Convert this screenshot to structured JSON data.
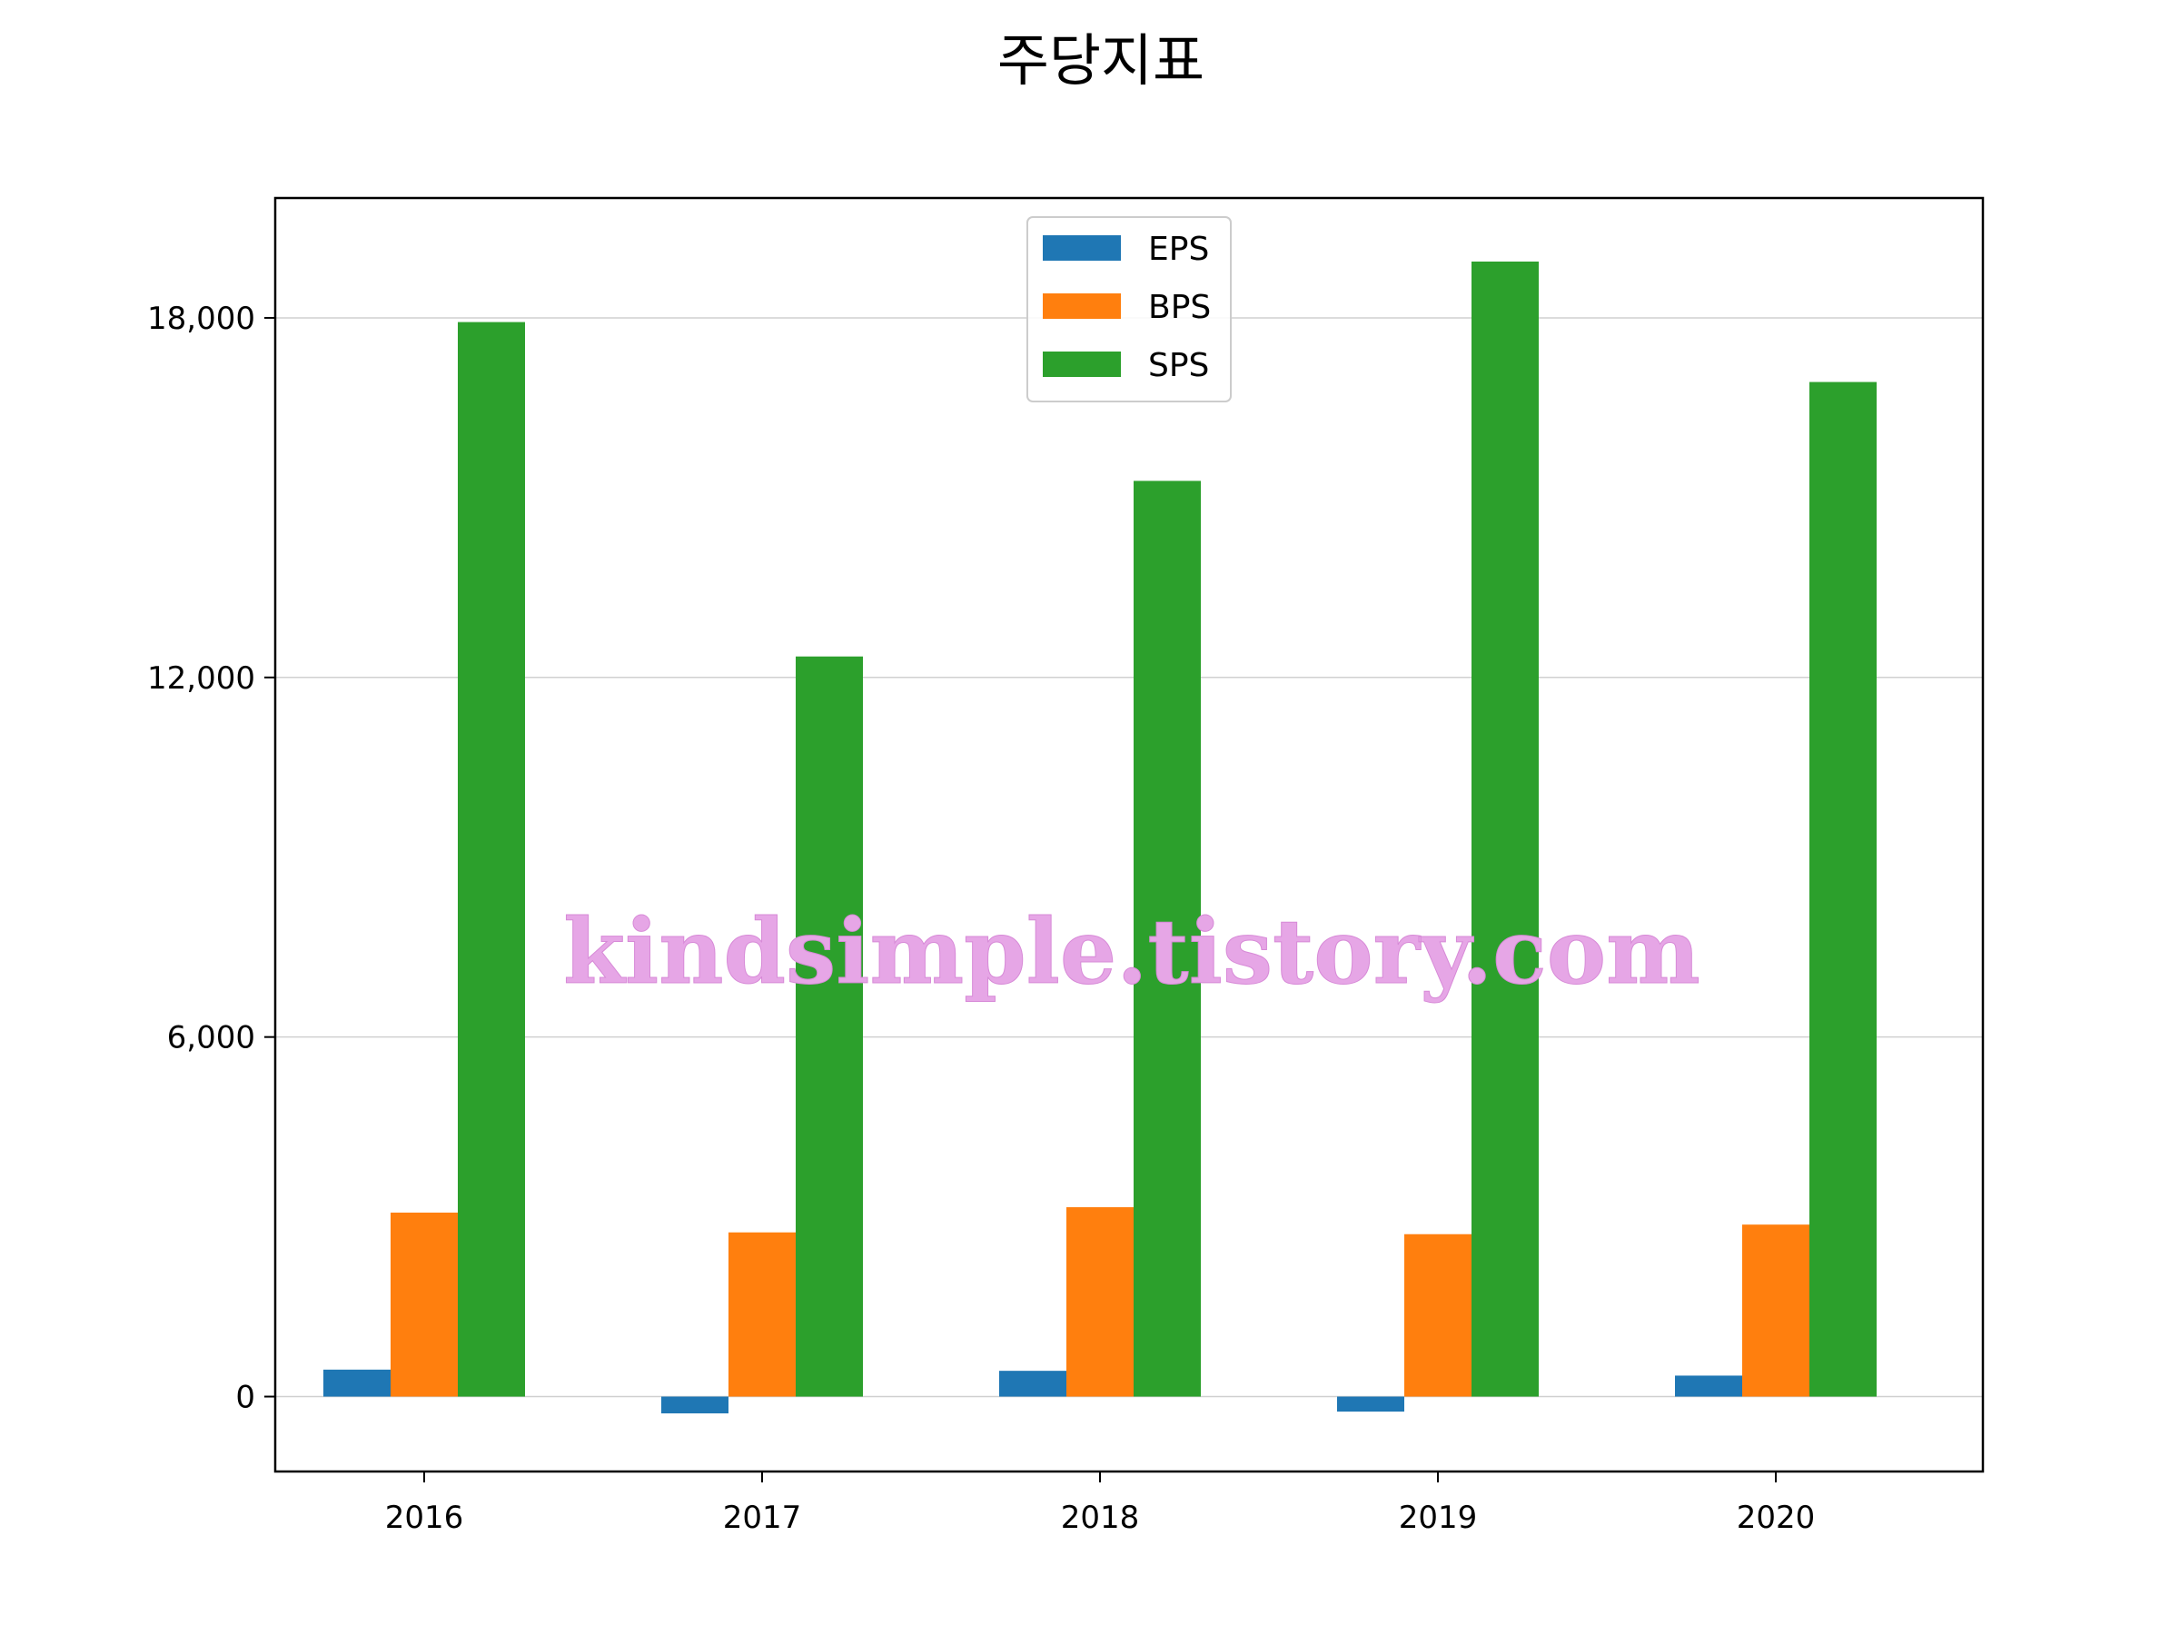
{
  "chart_data": {
    "type": "bar",
    "title": "주당지표",
    "xlabel": "",
    "ylabel": "",
    "categories": [
      "2016",
      "2017",
      "2018",
      "2019",
      "2020"
    ],
    "series": [
      {
        "name": "EPS",
        "color": "#1f77b4",
        "values": [
          450,
          -280,
          430,
          -250,
          350
        ]
      },
      {
        "name": "BPS",
        "color": "#ff7f0e",
        "values": [
          3070,
          2740,
          3160,
          2710,
          2870
        ]
      },
      {
        "name": "SPS",
        "color": "#2ca02c",
        "values": [
          17930,
          12350,
          15280,
          18940,
          16930
        ]
      }
    ],
    "ylim": [
      -1250,
      20000
    ],
    "yticks": [
      0,
      6000,
      12000,
      18000
    ],
    "ytick_labels": [
      "0",
      "6,000",
      "12,000",
      "18,000"
    ],
    "grid": "y-axis only",
    "legend_position": "upper center",
    "watermark": "kindsimple.tistory.com"
  }
}
